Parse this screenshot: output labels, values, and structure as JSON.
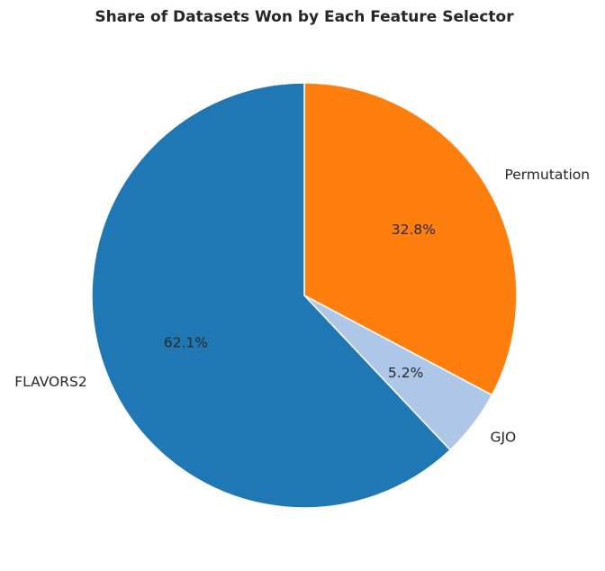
{
  "chart_data": {
    "type": "pie",
    "title": "Share of Datasets Won by Each Feature Selector",
    "categories": [
      "Permutation",
      "GJO",
      "FLAVORS2"
    ],
    "values": [
      32.8,
      5.2,
      62.1
    ],
    "percent_labels": [
      "32.8%",
      "5.2%",
      "62.1%"
    ],
    "colors": [
      "#ff7f0e",
      "#aec7e8",
      "#1f77b4"
    ],
    "start_angle_deg": 90,
    "direction": "clockwise",
    "edge_color": "#ffffff"
  }
}
